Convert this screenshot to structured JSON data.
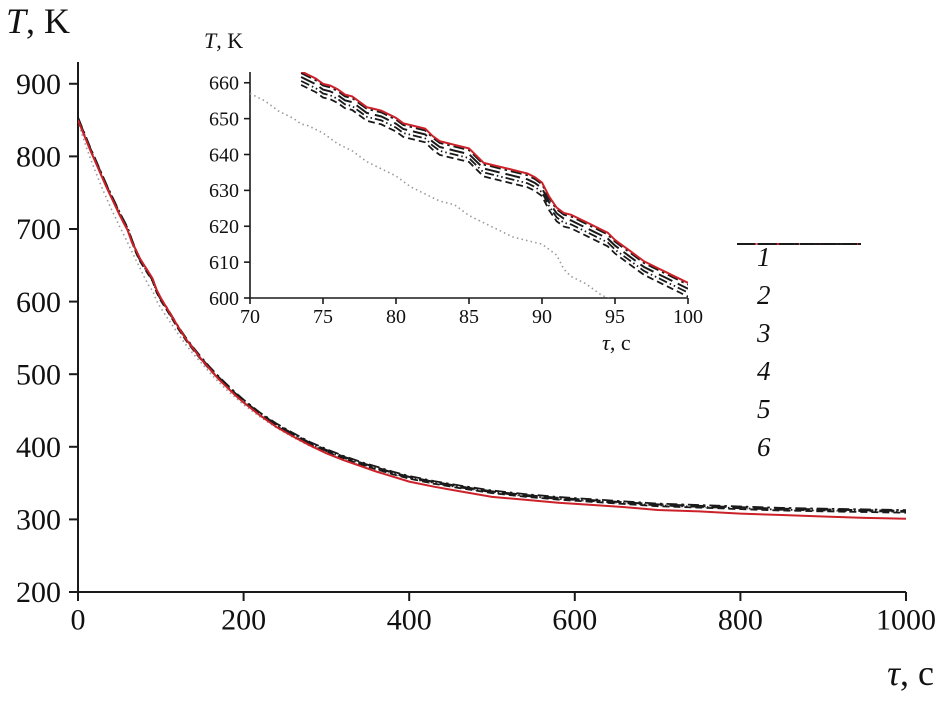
{
  "labels": {
    "main_y_italic": "T",
    "main_y_rest": ", K",
    "main_x_italic": "τ",
    "main_x_rest": ", c",
    "inset_y_italic": "T",
    "inset_y_rest": ", K",
    "inset_x_italic": "τ",
    "inset_x_rest": ", c"
  },
  "styles": {
    "s1": {
      "color": "#cc2128",
      "width": 2,
      "dash": null
    },
    "s2": {
      "color": "#999999",
      "width": 1.6,
      "dash": "1.5 3.2"
    },
    "s3": {
      "color": "#1a1a1a",
      "width": 1.8,
      "dash": "7 4"
    },
    "s4": {
      "color": "#1a1a1a",
      "width": 1.8,
      "dash": "9 3 1.5 3 1.5 3"
    },
    "s5": {
      "color": "#1a1a1a",
      "width": 2,
      "dash": "15 6"
    },
    "s6": {
      "color": "#1a1a1a",
      "width": 1.8,
      "dash": "11 4 2.5 4"
    }
  },
  "legend": {
    "items": [
      {
        "label": "1",
        "style": "s1"
      },
      {
        "label": "2",
        "style": "s2"
      },
      {
        "label": "3",
        "style": "s3"
      },
      {
        "label": "4",
        "style": "s4"
      },
      {
        "label": "5",
        "style": "s5"
      },
      {
        "label": "6",
        "style": "s6"
      }
    ]
  },
  "chart_data": [
    {
      "id": "main",
      "type": "line",
      "xlabel": "τ, c",
      "ylabel": "T, K",
      "xlim": [
        0,
        1000
      ],
      "ylim": [
        200,
        930
      ],
      "xticks": [
        0,
        200,
        400,
        600,
        800,
        1000
      ],
      "yticks": [
        200,
        300,
        400,
        500,
        600,
        700,
        800,
        900
      ],
      "base_curves": {
        "black": {
          "x": [
            0,
            5,
            10,
            15,
            20,
            25,
            30,
            35,
            40,
            45,
            50,
            55,
            60,
            65,
            70,
            75,
            80,
            85,
            90,
            95,
            100,
            110,
            120,
            130,
            140,
            150,
            160,
            170,
            180,
            190,
            200,
            220,
            240,
            260,
            280,
            300,
            320,
            340,
            360,
            380,
            400,
            430,
            460,
            500,
            540,
            580,
            620,
            660,
            700,
            750,
            800,
            850,
            900,
            950,
            1000
          ],
          "y": [
            852,
            838,
            824,
            810,
            797,
            784,
            771,
            758,
            746,
            734,
            722,
            711,
            700,
            684,
            669,
            657,
            648,
            639,
            630,
            614,
            603,
            585,
            566,
            549,
            534,
            520,
            507,
            495,
            484,
            473,
            463,
            445,
            430,
            417,
            405,
            395,
            386,
            378,
            371,
            364,
            358,
            351,
            345,
            338,
            333,
            329,
            326,
            323,
            320,
            318,
            316,
            314,
            313,
            312,
            311
          ]
        }
      },
      "series": [
        {
          "name": "1",
          "style": "s1",
          "x": [
            0,
            5,
            10,
            15,
            20,
            25,
            30,
            35,
            40,
            45,
            50,
            55,
            60,
            65,
            70,
            75,
            80,
            85,
            90,
            95,
            100,
            110,
            120,
            130,
            140,
            150,
            160,
            170,
            180,
            190,
            200,
            220,
            240,
            260,
            280,
            300,
            320,
            340,
            360,
            380,
            400,
            430,
            460,
            500,
            540,
            580,
            620,
            660,
            700,
            750,
            800,
            850,
            900,
            950,
            1000
          ],
          "y": [
            850,
            836,
            822,
            808,
            795,
            782,
            769,
            756,
            744,
            732,
            720,
            709,
            698,
            682,
            671,
            659,
            650,
            641,
            632,
            616,
            605,
            586,
            567,
            549,
            534,
            519,
            506,
            493,
            482,
            471,
            461,
            443,
            427,
            414,
            402,
            391,
            382,
            374,
            366,
            359,
            352,
            345,
            339,
            331,
            327,
            323,
            320,
            317,
            313,
            311,
            308,
            306,
            304,
            302,
            301
          ]
        },
        {
          "name": "2",
          "style": "s2",
          "x": [
            0,
            5,
            10,
            15,
            20,
            25,
            30,
            35,
            40,
            45,
            50,
            55,
            60,
            65,
            70,
            75,
            80,
            85,
            90,
            95,
            100,
            110,
            120,
            130,
            140,
            150,
            160,
            170,
            180,
            190,
            200,
            220,
            240,
            260,
            280,
            300,
            320,
            340,
            360,
            380,
            400,
            430,
            460,
            500,
            540,
            580,
            620,
            660,
            700,
            750,
            800,
            850,
            900,
            950,
            1000
          ],
          "y": [
            849,
            830,
            813,
            797,
            782,
            768,
            754,
            741,
            728,
            716,
            704,
            693,
            681,
            669,
            657,
            646,
            634,
            623,
            615,
            601,
            591,
            574,
            557,
            541,
            527,
            514,
            501,
            489,
            478,
            468,
            458,
            441,
            426,
            413,
            401,
            392,
            383,
            375,
            368,
            362,
            356,
            349,
            344,
            337,
            332,
            328,
            325,
            322,
            319,
            317,
            315,
            313,
            312,
            311,
            310
          ]
        },
        {
          "name": "3",
          "style": "s3",
          "base": "black",
          "offset": -1.8
        },
        {
          "name": "4",
          "style": "s4",
          "base": "black",
          "offset": -0.6
        },
        {
          "name": "5",
          "style": "s5",
          "base": "black",
          "offset": 0.6
        },
        {
          "name": "6",
          "style": "s6",
          "base": "black",
          "offset": 1.8
        }
      ]
    },
    {
      "id": "inset",
      "type": "line",
      "xlabel": "τ, c",
      "ylabel": "T, K",
      "xlim": [
        70,
        100
      ],
      "ylim": [
        600,
        663
      ],
      "xticks": [
        70,
        75,
        80,
        85,
        90,
        95,
        100
      ],
      "yticks": [
        600,
        610,
        620,
        630,
        640,
        650,
        660
      ],
      "base_curves": {
        "black": {
          "x": [
            73.5,
            74,
            74.5,
            75,
            75.5,
            76,
            76.5,
            77,
            77.5,
            78,
            78.5,
            79,
            79.5,
            80,
            80.5,
            81,
            81.5,
            82,
            82.5,
            83,
            83.5,
            84,
            84.5,
            85,
            85.5,
            86,
            86.5,
            87,
            87.5,
            88,
            88.5,
            89,
            89.5,
            90,
            90.5,
            91,
            91.5,
            92,
            92.5,
            93,
            93.5,
            94,
            94.5,
            95,
            95.5,
            96,
            96.5,
            97,
            97.5,
            98,
            98.5,
            99,
            99.5,
            100
          ],
          "y": [
            661,
            660,
            659,
            657.5,
            657,
            656,
            654.5,
            654,
            652.5,
            651,
            650.5,
            650,
            649,
            648,
            646.5,
            646,
            645.5,
            645,
            643,
            641.5,
            641,
            640.5,
            640,
            639.5,
            637.5,
            635.5,
            635,
            634.5,
            634,
            633.5,
            633,
            632.5,
            631.5,
            630,
            626,
            623,
            621.5,
            621,
            620,
            619,
            618,
            617,
            616,
            614,
            612.5,
            611,
            609.5,
            608,
            607,
            606,
            605,
            604,
            603,
            602
          ]
        }
      },
      "series": [
        {
          "name": "1",
          "style": "s1",
          "base": "black",
          "offset": 2.2
        },
        {
          "name": "2",
          "style": "s2",
          "x": [
            70,
            70.5,
            71,
            71.5,
            72,
            72.5,
            73,
            73.5,
            74,
            74.5,
            75,
            75.5,
            76,
            76.5,
            77,
            77.5,
            78,
            78.5,
            79,
            79.5,
            80,
            80.5,
            81,
            81.5,
            82,
            82.5,
            83,
            83.5,
            84,
            84.5,
            85,
            85.5,
            86,
            86.5,
            87,
            87.5,
            88,
            88.5,
            89,
            89.5,
            90,
            90.5,
            91,
            91.5,
            92,
            92.5,
            93,
            93.5,
            94,
            94.5,
            95,
            95.5,
            96
          ],
          "y": [
            657,
            656,
            655,
            653.5,
            652,
            651,
            650,
            648.5,
            648,
            647,
            646,
            644.5,
            643,
            642,
            641,
            639.5,
            638,
            637,
            636,
            635,
            634,
            632.5,
            631,
            630,
            629,
            628,
            627,
            626.5,
            626,
            624.5,
            623,
            622,
            621,
            620,
            619,
            618,
            617,
            616.5,
            616,
            615.5,
            615,
            613.5,
            612,
            608,
            606,
            605,
            604,
            602.5,
            601,
            600,
            598.5,
            597,
            595
          ]
        },
        {
          "name": "3",
          "style": "s3",
          "base": "black",
          "offset": -1.6
        },
        {
          "name": "4",
          "style": "s4",
          "base": "black",
          "offset": -0.5
        },
        {
          "name": "5",
          "style": "s5",
          "base": "black",
          "offset": 0.6
        },
        {
          "name": "6",
          "style": "s6",
          "base": "black",
          "offset": 1.7
        }
      ]
    }
  ]
}
